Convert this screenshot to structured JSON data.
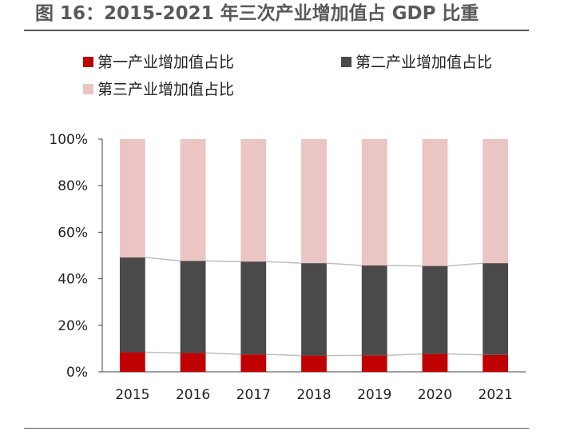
{
  "figure": {
    "title": "图 16：2015-2021 年三次产业增加值占 GDP 比重"
  },
  "colors": {
    "primary": "#C00000",
    "secondary": "#4A4A4A",
    "tertiary": "#EBC4C4",
    "connector": "#BFBFBF",
    "axis": "#404040",
    "text": "#222222",
    "title_text": "#595959"
  },
  "chart_data": {
    "type": "bar",
    "stacked": true,
    "percent": true,
    "categories": [
      "2015",
      "2016",
      "2017",
      "2018",
      "2019",
      "2020",
      "2021"
    ],
    "series": [
      {
        "name": "第一产业增加值占比",
        "values": [
          8.4,
          8.1,
          7.5,
          7.0,
          7.1,
          7.7,
          7.3
        ]
      },
      {
        "name": "第二产业增加值占比",
        "values": [
          40.8,
          39.6,
          39.9,
          39.7,
          38.6,
          37.8,
          39.4
        ]
      },
      {
        "name": "第三产业增加值占比",
        "values": [
          50.8,
          52.3,
          52.6,
          53.3,
          54.3,
          54.5,
          53.3
        ]
      }
    ],
    "ylim": [
      0,
      100
    ],
    "y_ticks": [
      0,
      20,
      40,
      60,
      80,
      100
    ],
    "y_tick_labels": [
      "0%",
      "20%",
      "40%",
      "60%",
      "80%",
      "100%"
    ],
    "xlabel": "",
    "ylabel": "",
    "legend_position": "top",
    "series_connectors": true,
    "grid": false
  }
}
